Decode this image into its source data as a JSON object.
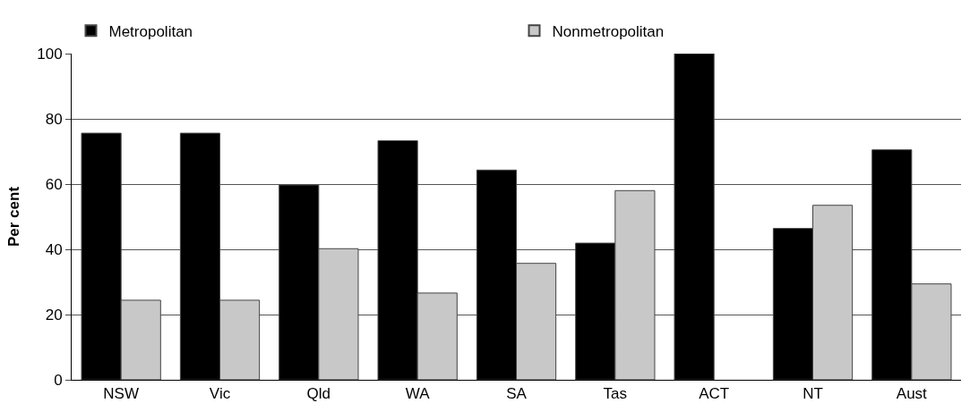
{
  "chart_data": {
    "type": "bar",
    "ylabel": "Per cent",
    "categories": [
      "NSW",
      "Vic",
      "Qld",
      "WA",
      "SA",
      "Tas",
      "ACT",
      "NT",
      "Aust"
    ],
    "series": [
      {
        "name": "Metropolitan",
        "color": "#000000",
        "values": [
          75.6,
          75.6,
          59.7,
          73.3,
          64.3,
          41.9,
          100,
          46.4,
          70.5
        ]
      },
      {
        "name": "Nonmetropolitan",
        "color": "#c8c8c8",
        "values": [
          24.4,
          24.4,
          40.2,
          26.6,
          35.7,
          58.0,
          null,
          53.5,
          29.4
        ]
      }
    ],
    "ylim": [
      0,
      100
    ],
    "yticks": [
      0,
      20,
      40,
      60,
      80,
      100
    ],
    "grid": "y",
    "legend": "top"
  }
}
